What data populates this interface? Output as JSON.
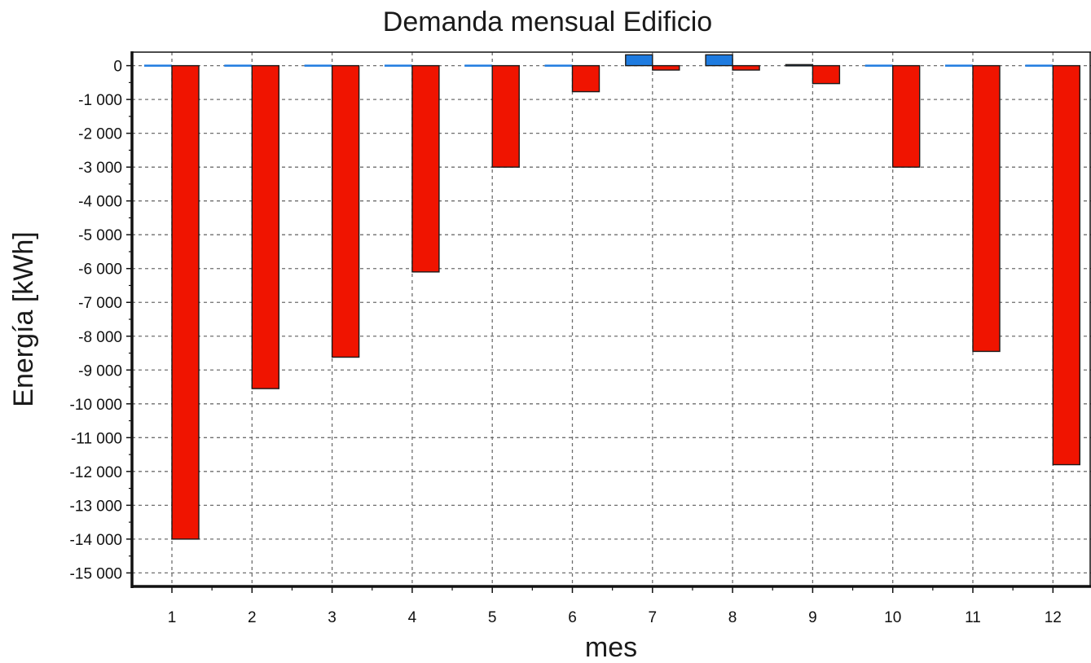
{
  "chart_data": {
    "type": "bar",
    "title": "Demanda mensual Edificio",
    "xlabel": "mes",
    "ylabel": "Energía [kWh]",
    "categories": [
      "1",
      "2",
      "3",
      "4",
      "5",
      "6",
      "7",
      "8",
      "9",
      "10",
      "11",
      "12"
    ],
    "ylim": [
      -15400,
      400
    ],
    "yticks": [
      0,
      -1000,
      -2000,
      -3000,
      -4000,
      -5000,
      -6000,
      -7000,
      -8000,
      -9000,
      -10000,
      -11000,
      -12000,
      -13000,
      -14000,
      -15000
    ],
    "ytick_labels": [
      "0",
      "-1 000",
      "-2 000",
      "-3 000",
      "-4 000",
      "-5 000",
      "-6 000",
      "-7 000",
      "-8 000",
      "-9 000",
      "-10 000",
      "-11 000",
      "-12 000",
      "-13 000",
      "-14 000",
      "-15 000"
    ],
    "grid": true,
    "series": [
      {
        "color": "#1e7be0",
        "values": [
          0,
          0,
          0,
          0,
          0,
          0,
          320,
          320,
          30,
          0,
          0,
          0
        ]
      },
      {
        "color": "#f01400",
        "values": [
          -14000,
          -9550,
          -8620,
          -6100,
          -3000,
          -770,
          -130,
          -130,
          -530,
          -3000,
          -8450,
          -11800
        ]
      }
    ]
  }
}
